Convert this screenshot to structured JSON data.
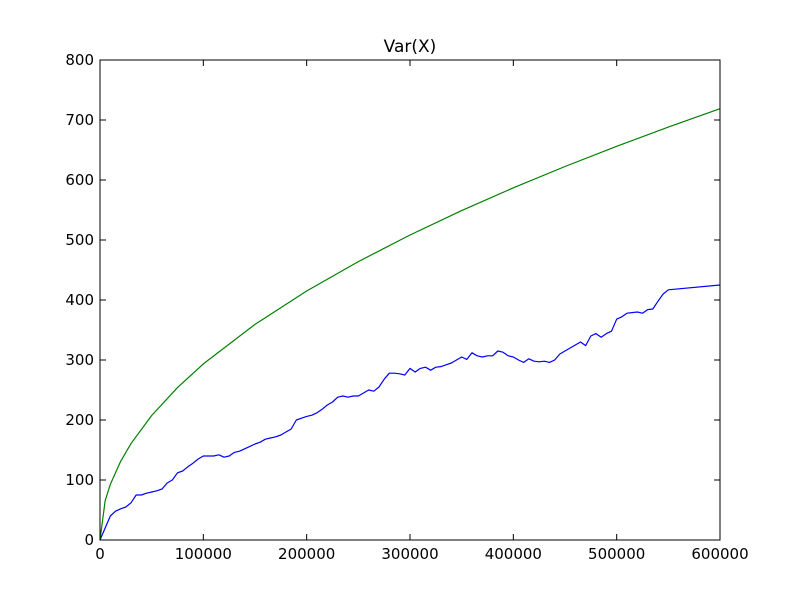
{
  "chart_data": {
    "type": "line",
    "title": "Var(X)",
    "xlabel": "",
    "ylabel": "",
    "xlim": [
      0,
      600000
    ],
    "ylim": [
      0,
      800
    ],
    "x_ticks": [
      0,
      100000,
      200000,
      300000,
      400000,
      500000,
      600000
    ],
    "y_ticks": [
      0,
      100,
      200,
      300,
      400,
      500,
      600,
      700,
      800
    ],
    "grid": false,
    "legend": "none",
    "series": [
      {
        "color": "#0000ff",
        "points": [
          [
            0,
            0
          ],
          [
            5000,
            20
          ],
          [
            10000,
            40
          ],
          [
            15000,
            48
          ],
          [
            20000,
            52
          ],
          [
            25000,
            55
          ],
          [
            30000,
            62
          ],
          [
            35000,
            75
          ],
          [
            40000,
            75
          ],
          [
            45000,
            78
          ],
          [
            50000,
            80
          ],
          [
            55000,
            82
          ],
          [
            60000,
            85
          ],
          [
            65000,
            95
          ],
          [
            70000,
            100
          ],
          [
            75000,
            112
          ],
          [
            80000,
            115
          ],
          [
            85000,
            122
          ],
          [
            90000,
            128
          ],
          [
            95000,
            135
          ],
          [
            100000,
            140
          ],
          [
            105000,
            140
          ],
          [
            110000,
            140
          ],
          [
            115000,
            142
          ],
          [
            120000,
            138
          ],
          [
            125000,
            140
          ],
          [
            130000,
            146
          ],
          [
            135000,
            148
          ],
          [
            140000,
            152
          ],
          [
            145000,
            156
          ],
          [
            150000,
            160
          ],
          [
            155000,
            163
          ],
          [
            160000,
            168
          ],
          [
            165000,
            170
          ],
          [
            170000,
            172
          ],
          [
            175000,
            175
          ],
          [
            180000,
            180
          ],
          [
            185000,
            185
          ],
          [
            190000,
            200
          ],
          [
            195000,
            203
          ],
          [
            200000,
            206
          ],
          [
            205000,
            208
          ],
          [
            210000,
            212
          ],
          [
            215000,
            218
          ],
          [
            220000,
            225
          ],
          [
            225000,
            230
          ],
          [
            230000,
            238
          ],
          [
            235000,
            240
          ],
          [
            240000,
            238
          ],
          [
            245000,
            240
          ],
          [
            250000,
            240
          ],
          [
            255000,
            245
          ],
          [
            260000,
            250
          ],
          [
            265000,
            248
          ],
          [
            270000,
            255
          ],
          [
            275000,
            268
          ],
          [
            280000,
            278
          ],
          [
            285000,
            278
          ],
          [
            290000,
            277
          ],
          [
            295000,
            275
          ],
          [
            300000,
            286
          ],
          [
            305000,
            280
          ],
          [
            310000,
            286
          ],
          [
            315000,
            288
          ],
          [
            320000,
            283
          ],
          [
            325000,
            288
          ],
          [
            330000,
            289
          ],
          [
            335000,
            292
          ],
          [
            340000,
            295
          ],
          [
            345000,
            300
          ],
          [
            350000,
            305
          ],
          [
            355000,
            301
          ],
          [
            360000,
            312
          ],
          [
            365000,
            307
          ],
          [
            370000,
            305
          ],
          [
            375000,
            307
          ],
          [
            380000,
            307
          ],
          [
            385000,
            315
          ],
          [
            390000,
            313
          ],
          [
            395000,
            307
          ],
          [
            400000,
            305
          ],
          [
            405000,
            300
          ],
          [
            410000,
            296
          ],
          [
            415000,
            302
          ],
          [
            420000,
            298
          ],
          [
            425000,
            297
          ],
          [
            430000,
            298
          ],
          [
            435000,
            296
          ],
          [
            440000,
            300
          ],
          [
            445000,
            310
          ],
          [
            450000,
            315
          ],
          [
            455000,
            320
          ],
          [
            460000,
            325
          ],
          [
            465000,
            330
          ],
          [
            470000,
            324
          ],
          [
            475000,
            340
          ],
          [
            480000,
            344
          ],
          [
            485000,
            338
          ],
          [
            490000,
            344
          ],
          [
            495000,
            348
          ],
          [
            500000,
            368
          ],
          [
            505000,
            372
          ],
          [
            510000,
            378
          ],
          [
            515000,
            379
          ],
          [
            520000,
            380
          ],
          [
            525000,
            378
          ],
          [
            530000,
            384
          ],
          [
            535000,
            385
          ],
          [
            540000,
            398
          ],
          [
            545000,
            410
          ],
          [
            550000,
            417
          ],
          [
            600000,
            425
          ]
        ]
      },
      {
        "color": "#008000",
        "function": "sqrt",
        "coefficient": 0.928,
        "points": [
          [
            0,
            0
          ],
          [
            5000,
            65.6
          ],
          [
            10000,
            92.8
          ],
          [
            20000,
            131.2
          ],
          [
            30000,
            160.7
          ],
          [
            50000,
            207.5
          ],
          [
            75000,
            254.1
          ],
          [
            100000,
            293.5
          ],
          [
            150000,
            359.4
          ],
          [
            200000,
            415.0
          ],
          [
            250000,
            464.0
          ],
          [
            300000,
            508.3
          ],
          [
            350000,
            549.0
          ],
          [
            400000,
            586.9
          ],
          [
            450000,
            622.5
          ],
          [
            500000,
            656.2
          ],
          [
            550000,
            688.2
          ],
          [
            600000,
            718.8
          ]
        ]
      }
    ]
  }
}
